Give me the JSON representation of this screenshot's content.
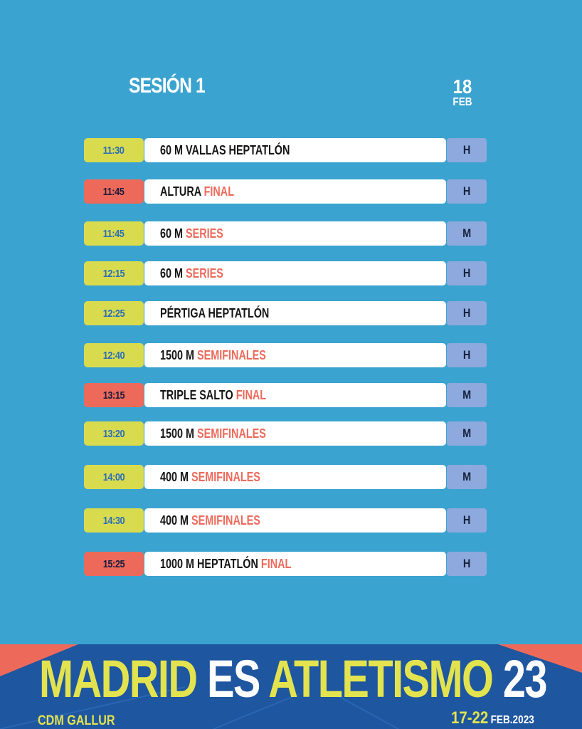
{
  "session": {
    "title": "SESIÓN 1",
    "day": "18",
    "month": "FEB"
  },
  "schedule": [
    {
      "time": "11:30",
      "time_color": "yellow",
      "event": "60 M VALLAS HEPTATLÓN",
      "highlight": "",
      "gender": "H"
    },
    {
      "time": "11:45",
      "time_color": "red",
      "event": "ALTURA",
      "highlight": "FINAL",
      "gender": "H"
    },
    {
      "time": "11:45",
      "time_color": "yellow",
      "event": "60 M",
      "highlight": "SERIES",
      "gender": "M"
    },
    {
      "time": "12:15",
      "time_color": "yellow",
      "event": "60 M",
      "highlight": "SERIES",
      "gender": "H"
    },
    {
      "time": "12:25",
      "time_color": "yellow",
      "event": "PÉRTIGA HEPTATLÓN",
      "highlight": "",
      "gender": "H"
    },
    {
      "time": "12:40",
      "time_color": "yellow",
      "event": "1500 M",
      "highlight": "SEMIFINALES",
      "gender": "H"
    },
    {
      "time": "13:15",
      "time_color": "red",
      "event": "TRIPLE SALTO",
      "highlight": "FINAL",
      "gender": "M"
    },
    {
      "time": "13:20",
      "time_color": "yellow",
      "event": "1500 M",
      "highlight": "SEMIFINALES",
      "gender": "M"
    },
    {
      "time": "14:00",
      "time_color": "yellow",
      "event": "400 M",
      "highlight": "SEMIFINALES",
      "gender": "M"
    },
    {
      "time": "14:30",
      "time_color": "yellow",
      "event": "400 M",
      "highlight": "SEMIFINALES",
      "gender": "H"
    },
    {
      "time": "15:25",
      "time_color": "red",
      "event": "1000 M HEPTATLÓN",
      "highlight": "FINAL",
      "gender": "H"
    }
  ],
  "footer": {
    "brand_part1": "MADRID",
    "brand_part2": "ES",
    "brand_part3": "ATLETISMO",
    "brand_part4": "23",
    "venue": "CDM GALLUR",
    "dates": "17-22",
    "dates_suffix": "FEB.2023"
  },
  "colors": {
    "background": "#3ba3d0",
    "time_yellow": "#d9db4f",
    "time_red": "#ed6a5b",
    "highlight": "#ed6a5b",
    "gender_badge": "#8ea9dd",
    "footer_bg": "#1e56a0",
    "brand_yellow": "#e3e34f"
  }
}
